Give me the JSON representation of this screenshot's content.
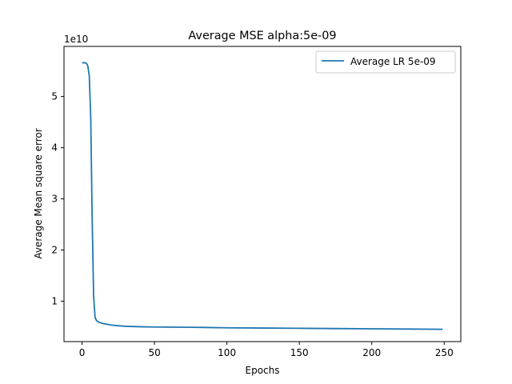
{
  "chart_data": {
    "type": "line",
    "title": "Average MSE alpha:5e-09",
    "xlabel": "Epochs",
    "ylabel": "Average Mean square error",
    "y_offset_label": "1e10",
    "xlim": [
      -12.45,
      261.45
    ],
    "ylim": [
      0.21,
      5.98
    ],
    "y_scale_note": "values in units of 1e10",
    "x_ticks": [
      0,
      50,
      100,
      150,
      200,
      250
    ],
    "x_tick_labels": [
      "0",
      "50",
      "100",
      "150",
      "200",
      "250"
    ],
    "y_ticks": [
      1,
      2,
      3,
      4,
      5
    ],
    "y_tick_labels": [
      "1",
      "2",
      "3",
      "4",
      "5"
    ],
    "grid": false,
    "legend_position": "top-right",
    "series": [
      {
        "name": "Average LR 5e-09",
        "color": "#1f77b4",
        "x": [
          0,
          1,
          2,
          3,
          4,
          5,
          6,
          7,
          8,
          9,
          10,
          11,
          12,
          13,
          15,
          17,
          20,
          25,
          30,
          40,
          50,
          75,
          100,
          125,
          150,
          175,
          200,
          225,
          249
        ],
        "y": [
          5.66,
          5.66,
          5.66,
          5.65,
          5.6,
          5.4,
          4.6,
          2.6,
          1.1,
          0.68,
          0.62,
          0.6,
          0.585,
          0.575,
          0.56,
          0.55,
          0.535,
          0.52,
          0.51,
          0.5,
          0.495,
          0.49,
          0.48,
          0.475,
          0.47,
          0.465,
          0.46,
          0.455,
          0.45
        ]
      }
    ]
  }
}
